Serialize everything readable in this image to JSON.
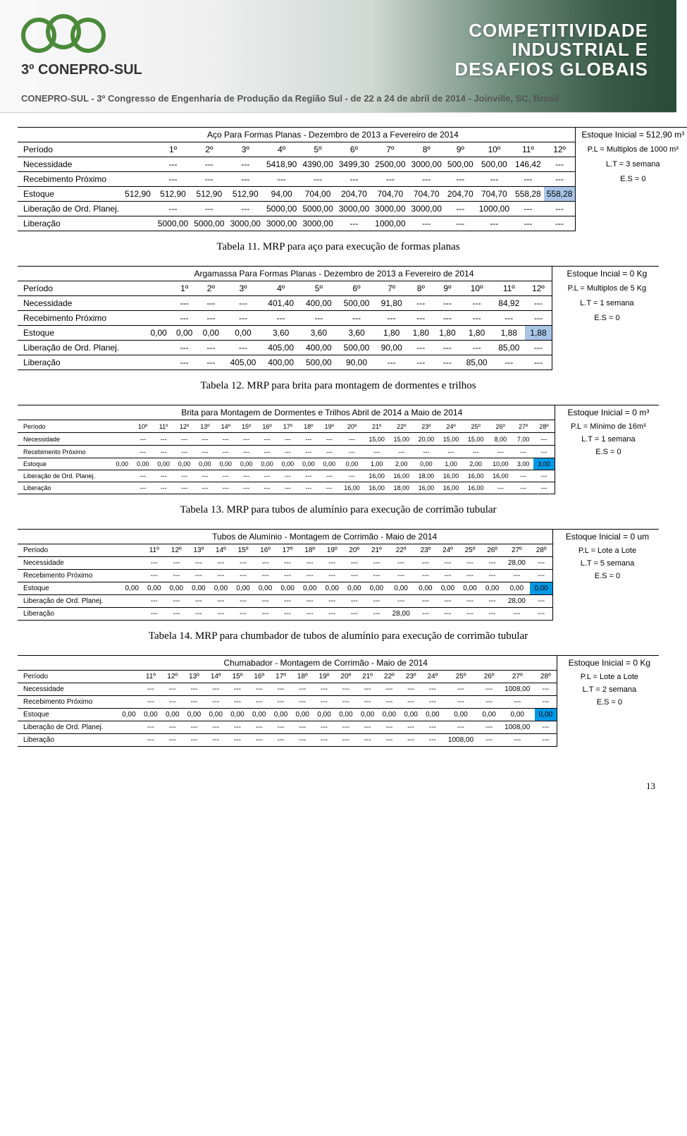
{
  "header": {
    "logo_text": "3º CONEPRO-SUL",
    "title_line1": "COMPETITIVIDADE",
    "title_line2": "INDUSTRIAL E",
    "title_line3": "DESAFIOS GLOBAIS",
    "subtitle": "CONEPRO-SUL - 3º Congresso de Engenharia de Produção da Região Sul - de 22 a 24 de abril de 2014 - Joinville, SC, Brasil"
  },
  "captions": {
    "t11": "Tabela 11. MRP para aço para execução de formas planas",
    "t12": "Tabela 12. MRP para brita para montagem de dormentes e trilhos",
    "t13": "Tabela 13. MRP para tubos de alumínio para execução de corrimão tubular",
    "t14": "Tabela 14. MRP para chumbador de tubos de alumínio para execução de corrimão tubular"
  },
  "row_labels": {
    "periodo": "Período",
    "necessidade": "Necessidade",
    "receb": "Recebimento Próximo",
    "estoque": "Estoque",
    "lib_planej": "Liberação de Ord. Planej.",
    "liberacao": "Liberação"
  },
  "table1": {
    "title": "Aço Para Formas Planas - Dezembro de 2013 a Fevereiro de 2014",
    "headers": [
      "1º",
      "2º",
      "3º",
      "4º",
      "5º",
      "6º",
      "7º",
      "8º",
      "9º",
      "10º",
      "11º",
      "12º"
    ],
    "side": [
      "Estoque Inicial = 512,90 m³",
      "P.L = Multiplos de 1000 m³",
      "L.T = 3 semana",
      "E.S = 0"
    ],
    "necessidade": [
      "---",
      "---",
      "---",
      "5418,90",
      "4390,00",
      "3499,30",
      "2500,00",
      "3000,00",
      "500,00",
      "500,00",
      "146,42",
      "---"
    ],
    "receb": [
      "---",
      "---",
      "---",
      "---",
      "---",
      "---",
      "---",
      "---",
      "---",
      "---",
      "---",
      "---"
    ],
    "estoque_lead": "512,90",
    "estoque": [
      "512,90",
      "512,90",
      "512,90",
      "94,00",
      "704,00",
      "204,70",
      "704,70",
      "704,70",
      "204,70",
      "704,70",
      "558,28",
      "558,28"
    ],
    "lib_planej": [
      "---",
      "---",
      "---",
      "5000,00",
      "5000,00",
      "3000,00",
      "3000,00",
      "3000,00",
      "---",
      "1000,00",
      "---",
      "---"
    ],
    "liberacao": [
      "5000,00",
      "5000,00",
      "3000,00",
      "3000,00",
      "3000,00",
      "---",
      "1000,00",
      "---",
      "---",
      "---",
      "---",
      "---"
    ],
    "highlight": "hl-light",
    "highlight_col": 11
  },
  "table2": {
    "title": "Argamassa Para Formas Planas - Dezembro de 2013 a Fevereiro de 2014",
    "headers": [
      "1º",
      "2º",
      "3º",
      "4º",
      "5º",
      "6º",
      "7º",
      "8º",
      "9º",
      "10º",
      "11º",
      "12º"
    ],
    "side": [
      "Estoque Incial = 0 Kg",
      "P.L = Multiplos de 5 Kg",
      "L.T = 1 semana",
      "E.S = 0"
    ],
    "necessidade": [
      "---",
      "---",
      "---",
      "401,40",
      "400,00",
      "500,00",
      "91,80",
      "---",
      "---",
      "---",
      "84,92",
      "---"
    ],
    "receb": [
      "---",
      "---",
      "---",
      "---",
      "---",
      "---",
      "---",
      "---",
      "---",
      "---",
      "---",
      "---"
    ],
    "estoque_lead": "0,00",
    "estoque": [
      "0,00",
      "0,00",
      "0,00",
      "3,60",
      "3,60",
      "3,60",
      "1,80",
      "1,80",
      "1,80",
      "1,80",
      "1,88",
      "1,88"
    ],
    "lib_planej": [
      "---",
      "---",
      "---",
      "405,00",
      "400,00",
      "500,00",
      "90,00",
      "---",
      "---",
      "---",
      "85,00",
      "---"
    ],
    "liberacao": [
      "---",
      "---",
      "405,00",
      "400,00",
      "500,00",
      "90,00",
      "---",
      "---",
      "---",
      "85,00",
      "---",
      "---"
    ],
    "highlight": "hl-light",
    "highlight_col": 11
  },
  "table3": {
    "title": "Brita para Montagem de Dormentes e Trilhos Abril de 2014 a Maio de 2014",
    "headers": [
      "10º",
      "11º",
      "12º",
      "13º",
      "14º",
      "15º",
      "16º",
      "17º",
      "18º",
      "19º",
      "20º",
      "21º",
      "22º",
      "23º",
      "24º",
      "25º",
      "26º",
      "27º",
      "28º"
    ],
    "side": [
      "Estoque Inicial = 0 m³",
      "P.L = Mínimo de 16m³",
      "L.T = 1 semana",
      "E.S = 0"
    ],
    "necessidade": [
      "---",
      "---",
      "---",
      "---",
      "---",
      "---",
      "---",
      "---",
      "---",
      "---",
      "---",
      "15,00",
      "15,00",
      "20,00",
      "15,00",
      "15,00",
      "8,00",
      "7,00",
      "---"
    ],
    "receb": [
      "---",
      "---",
      "---",
      "---",
      "---",
      "---",
      "---",
      "---",
      "---",
      "---",
      "---",
      "---",
      "---",
      "---",
      "---",
      "---",
      "---",
      "---",
      "---"
    ],
    "estoque_lead": "0,00",
    "estoque": [
      "0,00",
      "0,00",
      "0,00",
      "0,00",
      "0,00",
      "0,00",
      "0,00",
      "0,00",
      "0,00",
      "0,00",
      "0,00",
      "1,00",
      "2,00",
      "0,00",
      "1,00",
      "2,00",
      "10,00",
      "3,00",
      "3,00"
    ],
    "lib_planej": [
      "---",
      "---",
      "---",
      "---",
      "---",
      "---",
      "---",
      "---",
      "---",
      "---",
      "---",
      "16,00",
      "16,00",
      "18,00",
      "16,00",
      "16,00",
      "16,00",
      "---",
      "---"
    ],
    "liberacao": [
      "---",
      "---",
      "---",
      "---",
      "---",
      "---",
      "---",
      "---",
      "---",
      "---",
      "16,00",
      "16,00",
      "18,00",
      "16,00",
      "16,00",
      "16,00",
      "---",
      "---",
      "---"
    ],
    "highlight": "hl-blue",
    "highlight_col": 18
  },
  "table4": {
    "title": "Tubos de Alumínio - Montagem de Corrimão - Maio de 2014",
    "headers": [
      "11º",
      "12º",
      "13º",
      "14º",
      "15º",
      "16º",
      "17º",
      "18º",
      "19º",
      "20º",
      "21º",
      "22º",
      "23º",
      "24º",
      "25º",
      "26º",
      "27º",
      "28º"
    ],
    "side": [
      "Estoque Inicial = 0 um",
      "P.L = Lote a Lote",
      "L.T = 5 semana",
      "E.S = 0"
    ],
    "necessidade": [
      "---",
      "---",
      "---",
      "---",
      "---",
      "---",
      "---",
      "---",
      "---",
      "---",
      "---",
      "---",
      "---",
      "---",
      "---",
      "---",
      "28,00",
      "---"
    ],
    "receb": [
      "---",
      "---",
      "---",
      "---",
      "---",
      "---",
      "---",
      "---",
      "---",
      "---",
      "---",
      "---",
      "---",
      "---",
      "---",
      "---",
      "---",
      "---"
    ],
    "estoque_lead": "0,00",
    "estoque": [
      "0,00",
      "0,00",
      "0,00",
      "0,00",
      "0,00",
      "0,00",
      "0,00",
      "0,00",
      "0,00",
      "0,00",
      "0,00",
      "0,00",
      "0,00",
      "0,00",
      "0,00",
      "0,00",
      "0,00",
      "0,00"
    ],
    "lib_planej": [
      "---",
      "---",
      "---",
      "---",
      "---",
      "---",
      "---",
      "---",
      "---",
      "---",
      "---",
      "---",
      "---",
      "---",
      "---",
      "---",
      "28,00",
      "---"
    ],
    "liberacao": [
      "---",
      "---",
      "---",
      "---",
      "---",
      "---",
      "---",
      "---",
      "---",
      "---",
      "---",
      "28,00",
      "---",
      "---",
      "---",
      "---",
      "---",
      "---"
    ],
    "highlight": "hl-blue",
    "highlight_col": 17
  },
  "table5": {
    "title": "Chumabador - Montagem de Corrimão - Maio de 2014",
    "headers": [
      "11º",
      "12º",
      "13º",
      "14º",
      "15º",
      "16º",
      "17º",
      "18º",
      "19º",
      "20º",
      "21º",
      "22º",
      "23º",
      "24º",
      "25º",
      "26º",
      "27º",
      "28º"
    ],
    "side": [
      "Estoque Inicial = 0 Kg",
      "P.L = Lote a Lote",
      "L.T = 2 semana",
      "E.S = 0"
    ],
    "necessidade": [
      "---",
      "---",
      "---",
      "---",
      "---",
      "---",
      "---",
      "---",
      "---",
      "---",
      "---",
      "---",
      "---",
      "---",
      "---",
      "---",
      "1008,00",
      "---"
    ],
    "receb": [
      "---",
      "---",
      "---",
      "---",
      "---",
      "---",
      "---",
      "---",
      "---",
      "---",
      "---",
      "---",
      "---",
      "---",
      "---",
      "---",
      "---",
      "---"
    ],
    "estoque_lead": "0,00",
    "estoque": [
      "0,00",
      "0,00",
      "0,00",
      "0,00",
      "0,00",
      "0,00",
      "0,00",
      "0,00",
      "0,00",
      "0,00",
      "0,00",
      "0,00",
      "0,00",
      "0,00",
      "0,00",
      "0,00",
      "0,00",
      "0,00"
    ],
    "lib_planej": [
      "---",
      "---",
      "---",
      "---",
      "---",
      "---",
      "---",
      "---",
      "---",
      "---",
      "---",
      "---",
      "---",
      "---",
      "---",
      "---",
      "1008,00",
      "---"
    ],
    "liberacao": [
      "---",
      "---",
      "---",
      "---",
      "---",
      "---",
      "---",
      "---",
      "---",
      "---",
      "---",
      "---",
      "---",
      "---",
      "1008,00",
      "---",
      "---",
      "---"
    ],
    "highlight": "hl-blue",
    "highlight_col": 17
  },
  "page_num": "13"
}
